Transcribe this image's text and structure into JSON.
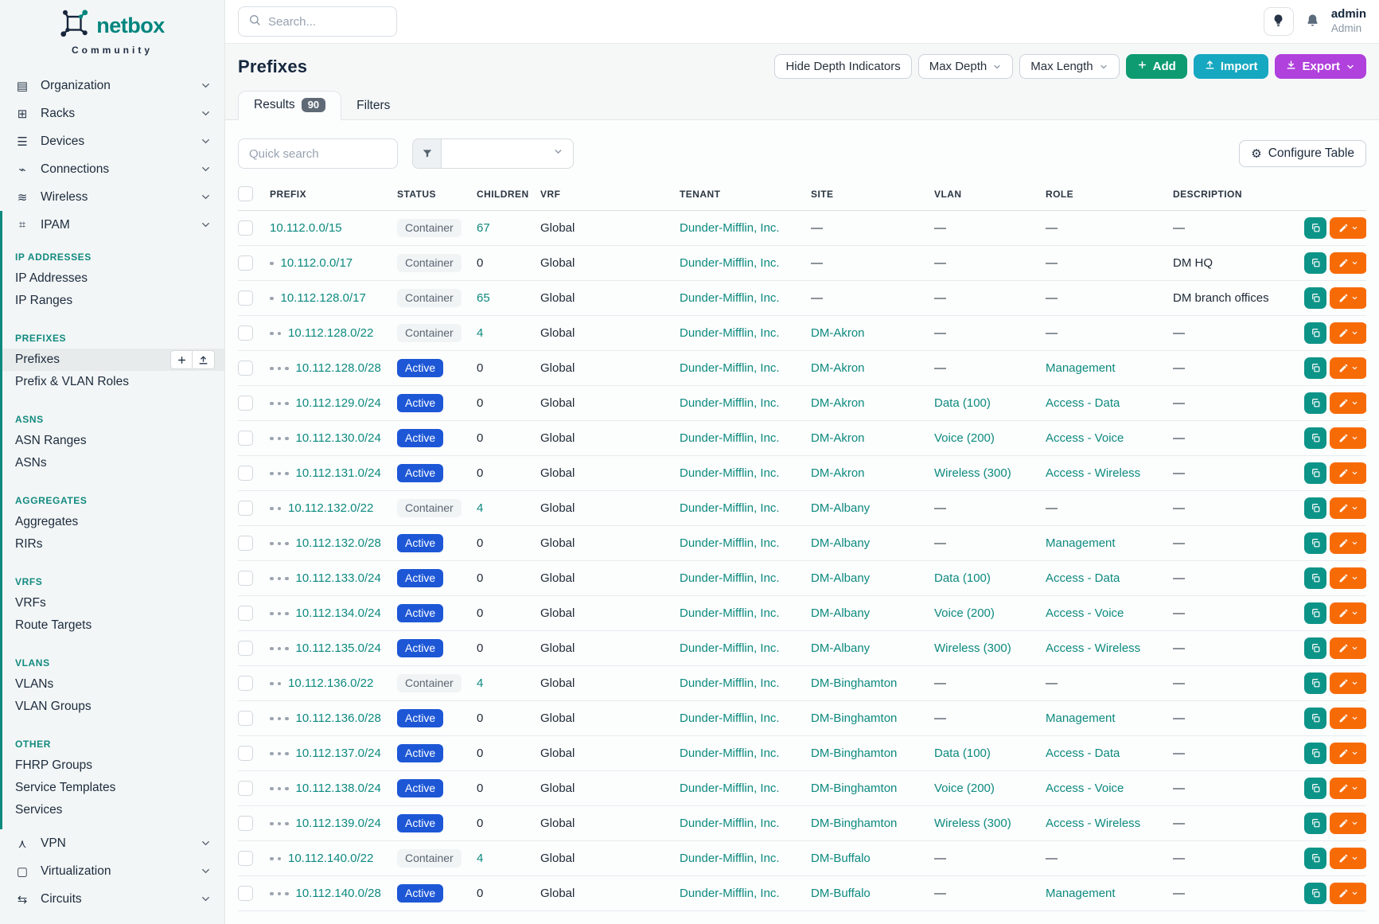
{
  "brand": {
    "name": "netbox",
    "tagline": "Community"
  },
  "topbar": {
    "search_placeholder": "Search...",
    "user_name": "admin",
    "user_role": "Admin"
  },
  "page": {
    "title": "Prefixes",
    "hide_depth_label": "Hide Depth Indicators",
    "max_depth_label": "Max Depth",
    "max_length_label": "Max Length",
    "add_label": "Add",
    "import_label": "Import",
    "export_label": "Export"
  },
  "tabs": {
    "results_label": "Results",
    "results_count": "90",
    "filters_label": "Filters"
  },
  "toolbar": {
    "quick_search_placeholder": "Quick search",
    "configure_table_label": "Configure Table"
  },
  "sidebar": {
    "items_top": [
      {
        "label": "Organization",
        "icon": "organization-icon",
        "glyph": "▤"
      },
      {
        "label": "Racks",
        "icon": "racks-icon",
        "glyph": "⊞"
      },
      {
        "label": "Devices",
        "icon": "devices-icon",
        "glyph": "☰"
      },
      {
        "label": "Connections",
        "icon": "connections-icon",
        "glyph": "⌁"
      },
      {
        "label": "Wireless",
        "icon": "wireless-icon",
        "glyph": "≋"
      }
    ],
    "ipam": {
      "label": "IPAM",
      "icon": "ipam-icon",
      "glyph": "⌗",
      "groups": [
        {
          "header": "IP ADDRESSES",
          "items": [
            {
              "label": "IP Addresses"
            },
            {
              "label": "IP Ranges"
            }
          ]
        },
        {
          "header": "PREFIXES",
          "items": [
            {
              "label": "Prefixes",
              "active": true
            },
            {
              "label": "Prefix & VLAN Roles"
            }
          ]
        },
        {
          "header": "ASNS",
          "items": [
            {
              "label": "ASN Ranges"
            },
            {
              "label": "ASNs"
            }
          ]
        },
        {
          "header": "AGGREGATES",
          "items": [
            {
              "label": "Aggregates"
            },
            {
              "label": "RIRs"
            }
          ]
        },
        {
          "header": "VRFS",
          "items": [
            {
              "label": "VRFs"
            },
            {
              "label": "Route Targets"
            }
          ]
        },
        {
          "header": "VLANS",
          "items": [
            {
              "label": "VLANs"
            },
            {
              "label": "VLAN Groups"
            }
          ]
        },
        {
          "header": "OTHER",
          "items": [
            {
              "label": "FHRP Groups"
            },
            {
              "label": "Service Templates"
            },
            {
              "label": "Services"
            }
          ]
        }
      ]
    },
    "items_bottom": [
      {
        "label": "VPN",
        "icon": "vpn-icon",
        "glyph": "⋏"
      },
      {
        "label": "Virtualization",
        "icon": "virtualization-icon",
        "glyph": "▢"
      },
      {
        "label": "Circuits",
        "icon": "circuits-icon",
        "glyph": "⇆"
      }
    ]
  },
  "table": {
    "columns": [
      "PREFIX",
      "STATUS",
      "CHILDREN",
      "VRF",
      "TENANT",
      "SITE",
      "VLAN",
      "ROLE",
      "DESCRIPTION"
    ],
    "rows": [
      {
        "depth": 0,
        "prefix": "10.112.0.0/15",
        "status": "Container",
        "children": "67",
        "vrf": "Global",
        "tenant": "Dunder-Mifflin, Inc.",
        "site": "—",
        "vlan": "—",
        "role": "—",
        "description": "—"
      },
      {
        "depth": 1,
        "prefix": "10.112.0.0/17",
        "status": "Container",
        "children": "0",
        "vrf": "Global",
        "tenant": "Dunder-Mifflin, Inc.",
        "site": "—",
        "vlan": "—",
        "role": "—",
        "description": "DM HQ"
      },
      {
        "depth": 1,
        "prefix": "10.112.128.0/17",
        "status": "Container",
        "children": "65",
        "vrf": "Global",
        "tenant": "Dunder-Mifflin, Inc.",
        "site": "—",
        "vlan": "—",
        "role": "—",
        "description": "DM branch offices"
      },
      {
        "depth": 2,
        "prefix": "10.112.128.0/22",
        "status": "Container",
        "children": "4",
        "vrf": "Global",
        "tenant": "Dunder-Mifflin, Inc.",
        "site": "DM-Akron",
        "vlan": "—",
        "role": "—",
        "description": "—"
      },
      {
        "depth": 3,
        "prefix": "10.112.128.0/28",
        "status": "Active",
        "children": "0",
        "vrf": "Global",
        "tenant": "Dunder-Mifflin, Inc.",
        "site": "DM-Akron",
        "vlan": "—",
        "role": "Management",
        "description": "—"
      },
      {
        "depth": 3,
        "prefix": "10.112.129.0/24",
        "status": "Active",
        "children": "0",
        "vrf": "Global",
        "tenant": "Dunder-Mifflin, Inc.",
        "site": "DM-Akron",
        "vlan": "Data (100)",
        "role": "Access - Data",
        "description": "—"
      },
      {
        "depth": 3,
        "prefix": "10.112.130.0/24",
        "status": "Active",
        "children": "0",
        "vrf": "Global",
        "tenant": "Dunder-Mifflin, Inc.",
        "site": "DM-Akron",
        "vlan": "Voice (200)",
        "role": "Access - Voice",
        "description": "—"
      },
      {
        "depth": 3,
        "prefix": "10.112.131.0/24",
        "status": "Active",
        "children": "0",
        "vrf": "Global",
        "tenant": "Dunder-Mifflin, Inc.",
        "site": "DM-Akron",
        "vlan": "Wireless (300)",
        "role": "Access - Wireless",
        "description": "—"
      },
      {
        "depth": 2,
        "prefix": "10.112.132.0/22",
        "status": "Container",
        "children": "4",
        "vrf": "Global",
        "tenant": "Dunder-Mifflin, Inc.",
        "site": "DM-Albany",
        "vlan": "—",
        "role": "—",
        "description": "—"
      },
      {
        "depth": 3,
        "prefix": "10.112.132.0/28",
        "status": "Active",
        "children": "0",
        "vrf": "Global",
        "tenant": "Dunder-Mifflin, Inc.",
        "site": "DM-Albany",
        "vlan": "—",
        "role": "Management",
        "description": "—"
      },
      {
        "depth": 3,
        "prefix": "10.112.133.0/24",
        "status": "Active",
        "children": "0",
        "vrf": "Global",
        "tenant": "Dunder-Mifflin, Inc.",
        "site": "DM-Albany",
        "vlan": "Data (100)",
        "role": "Access - Data",
        "description": "—"
      },
      {
        "depth": 3,
        "prefix": "10.112.134.0/24",
        "status": "Active",
        "children": "0",
        "vrf": "Global",
        "tenant": "Dunder-Mifflin, Inc.",
        "site": "DM-Albany",
        "vlan": "Voice (200)",
        "role": "Access - Voice",
        "description": "—"
      },
      {
        "depth": 3,
        "prefix": "10.112.135.0/24",
        "status": "Active",
        "children": "0",
        "vrf": "Global",
        "tenant": "Dunder-Mifflin, Inc.",
        "site": "DM-Albany",
        "vlan": "Wireless (300)",
        "role": "Access - Wireless",
        "description": "—"
      },
      {
        "depth": 2,
        "prefix": "10.112.136.0/22",
        "status": "Container",
        "children": "4",
        "vrf": "Global",
        "tenant": "Dunder-Mifflin, Inc.",
        "site": "DM-Binghamton",
        "vlan": "—",
        "role": "—",
        "description": "—"
      },
      {
        "depth": 3,
        "prefix": "10.112.136.0/28",
        "status": "Active",
        "children": "0",
        "vrf": "Global",
        "tenant": "Dunder-Mifflin, Inc.",
        "site": "DM-Binghamton",
        "vlan": "—",
        "role": "Management",
        "description": "—"
      },
      {
        "depth": 3,
        "prefix": "10.112.137.0/24",
        "status": "Active",
        "children": "0",
        "vrf": "Global",
        "tenant": "Dunder-Mifflin, Inc.",
        "site": "DM-Binghamton",
        "vlan": "Data (100)",
        "role": "Access - Data",
        "description": "—"
      },
      {
        "depth": 3,
        "prefix": "10.112.138.0/24",
        "status": "Active",
        "children": "0",
        "vrf": "Global",
        "tenant": "Dunder-Mifflin, Inc.",
        "site": "DM-Binghamton",
        "vlan": "Voice (200)",
        "role": "Access - Voice",
        "description": "—"
      },
      {
        "depth": 3,
        "prefix": "10.112.139.0/24",
        "status": "Active",
        "children": "0",
        "vrf": "Global",
        "tenant": "Dunder-Mifflin, Inc.",
        "site": "DM-Binghamton",
        "vlan": "Wireless (300)",
        "role": "Access - Wireless",
        "description": "—"
      },
      {
        "depth": 2,
        "prefix": "10.112.140.0/22",
        "status": "Container",
        "children": "4",
        "vrf": "Global",
        "tenant": "Dunder-Mifflin, Inc.",
        "site": "DM-Buffalo",
        "vlan": "—",
        "role": "—",
        "description": "—"
      },
      {
        "depth": 3,
        "prefix": "10.112.140.0/28",
        "status": "Active",
        "children": "0",
        "vrf": "Global",
        "tenant": "Dunder-Mifflin, Inc.",
        "site": "DM-Buffalo",
        "vlan": "—",
        "role": "Management",
        "description": "—"
      }
    ]
  },
  "colors": {
    "link_teal": "#0d8a7f",
    "active_badge_blue": "#1d57d6",
    "container_badge_gray": "#f1f4f5",
    "add_green": "#0e9b72",
    "import_cyan": "#16a8c0",
    "export_purple": "#b041dc",
    "edit_orange": "#f76b07",
    "copy_teal": "#0d9488"
  }
}
